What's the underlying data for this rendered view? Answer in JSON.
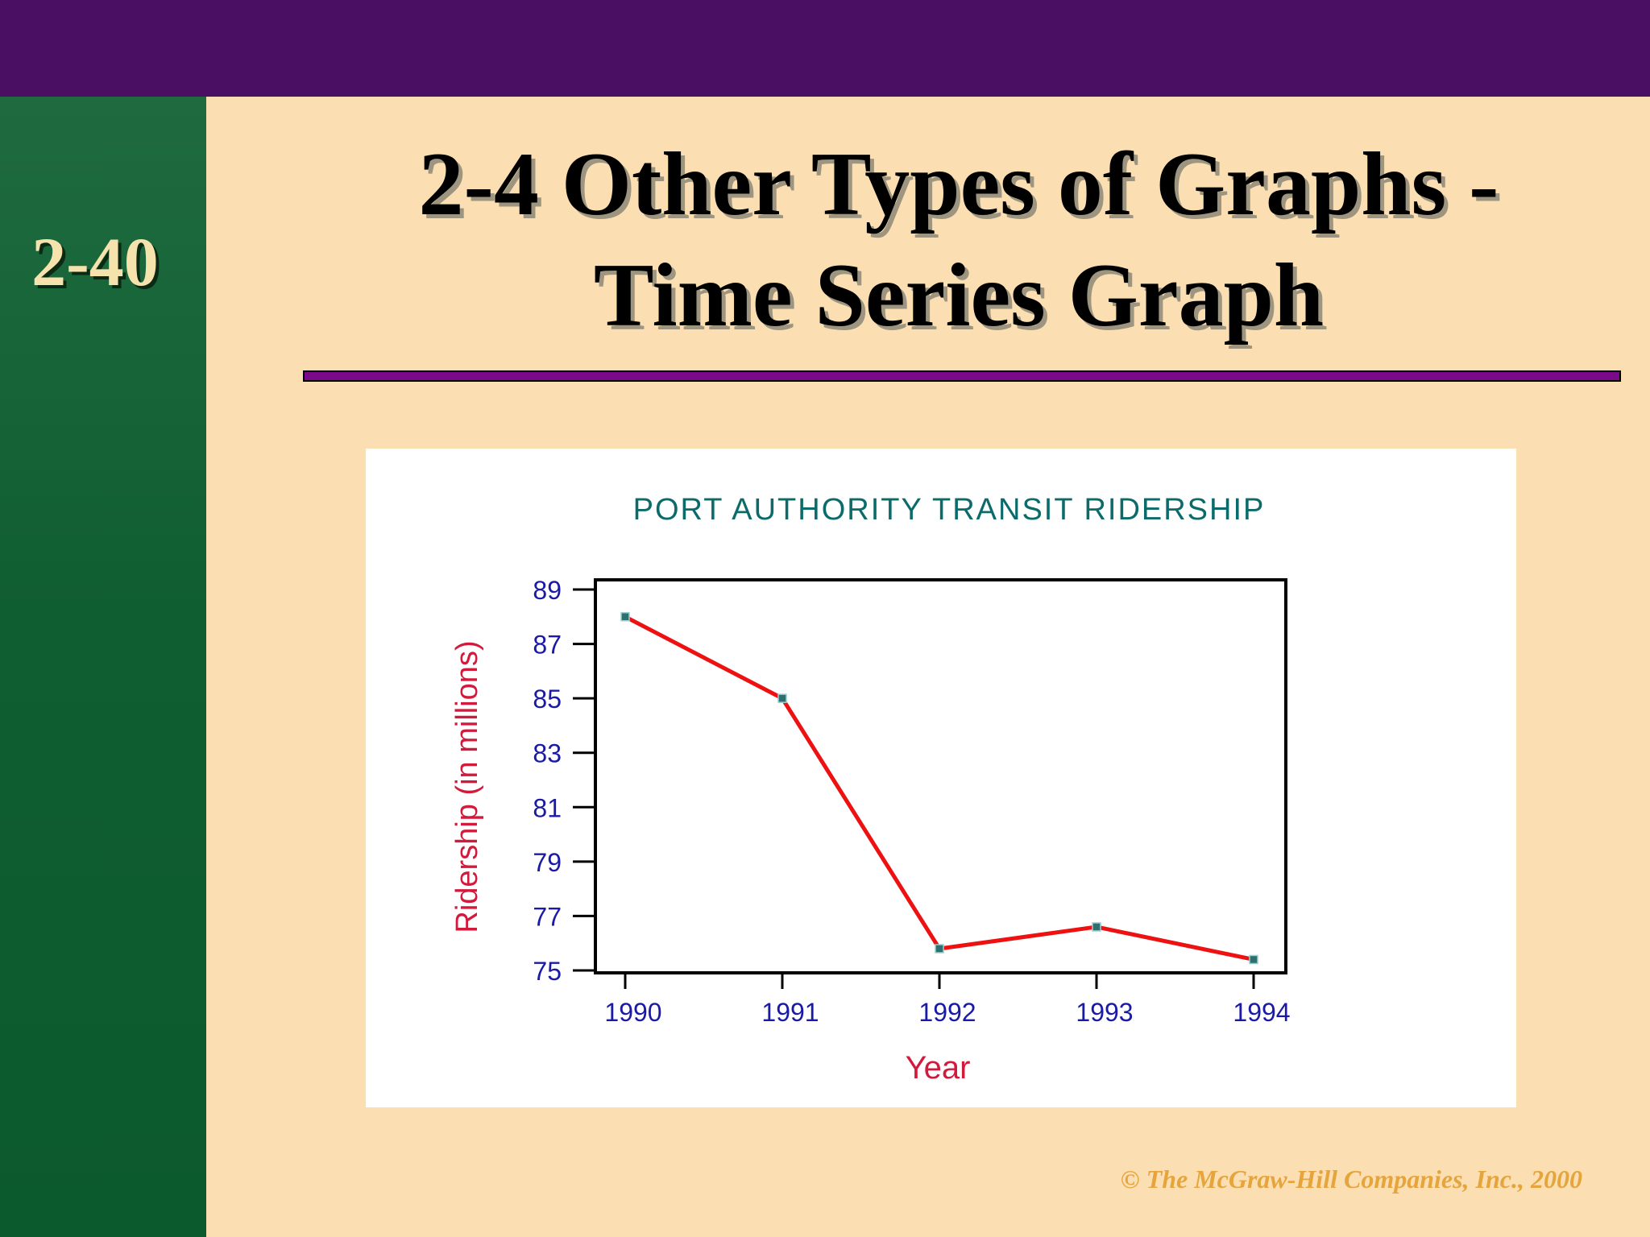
{
  "slide": {
    "number": "2-40",
    "title_line1": "2-4  Other Types of Graphs -",
    "title_line2": "Time Series Graph",
    "copyright": "© The McGraw-Hill Companies, Inc., 2000"
  },
  "colors": {
    "top_bar": "#4a0f62",
    "side_bar": "#0f5e32",
    "background": "#fbdfb2",
    "rule": "#7b0a8a",
    "chart_title": "#0b6b6b",
    "tick_labels": "#1a1aa6",
    "axis_labels": "#d21a3c",
    "series_line": "#ee1111"
  },
  "chart_data": {
    "type": "line",
    "title": "PORT AUTHORITY TRANSIT RIDERSHIP",
    "xlabel": "Year",
    "ylabel": "Ridership (in millions)",
    "x": [
      "1990",
      "1991",
      "1992",
      "1993",
      "1994"
    ],
    "series": [
      {
        "values": [
          88.0,
          85.0,
          75.8,
          76.6,
          75.4
        ]
      }
    ],
    "ylim": [
      75,
      89
    ],
    "yticks": [
      75,
      77,
      79,
      81,
      83,
      85,
      87,
      89
    ],
    "grid": false,
    "legend": "none"
  }
}
